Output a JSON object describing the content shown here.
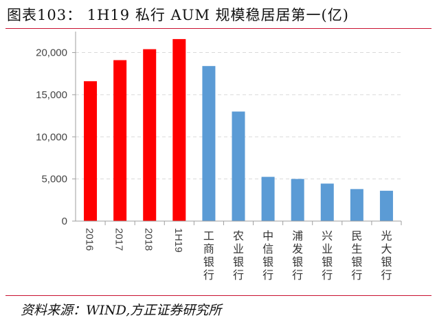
{
  "title": "图表103：  1H19 私行 AUM 规模稳居居第一(亿)",
  "source": "资料来源：WIND,方正证券研究所",
  "colors": {
    "red": "#ff0000",
    "blue": "#5b9bd5",
    "rule": "#c8102e",
    "grid": "#d9d9d9",
    "axis": "#9e9e9e"
  },
  "chart_data": {
    "type": "bar",
    "title": "",
    "xlabel": "",
    "ylabel": "",
    "ylim": [
      0,
      22000
    ],
    "yticks": [
      0,
      5000,
      10000,
      15000,
      20000
    ],
    "ytick_labels": [
      "0",
      "5,000",
      "10,000",
      "15,000",
      "20,000"
    ],
    "grid": true,
    "categories": [
      "2016",
      "2017",
      "2018",
      "1H19",
      "工商银行",
      "农业银行",
      "中信银行",
      "浦发银行",
      "兴业银行",
      "民生银行",
      "光大银行"
    ],
    "values": [
      16600,
      19100,
      20400,
      21600,
      18400,
      13000,
      5250,
      5000,
      4450,
      3800,
      3600
    ],
    "bar_colors": [
      "#ff0000",
      "#ff0000",
      "#ff0000",
      "#ff0000",
      "#5b9bd5",
      "#5b9bd5",
      "#5b9bd5",
      "#5b9bd5",
      "#5b9bd5",
      "#5b9bd5",
      "#5b9bd5"
    ]
  }
}
